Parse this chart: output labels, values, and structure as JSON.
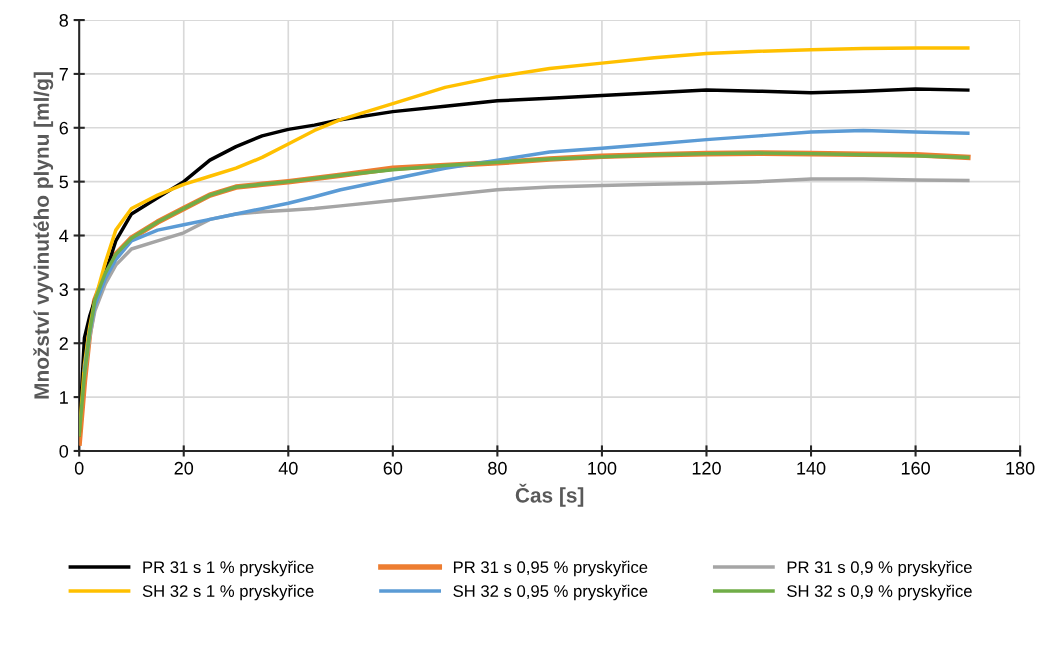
{
  "chart_data": {
    "type": "line",
    "xlabel": "Čas [s]",
    "ylabel": "Množství vyvinutého plynu [ml/g]",
    "x": [
      0,
      1,
      2,
      3,
      5,
      7,
      10,
      15,
      20,
      25,
      30,
      35,
      40,
      45,
      50,
      60,
      70,
      80,
      90,
      100,
      110,
      120,
      130,
      140,
      150,
      160,
      170
    ],
    "xlim": [
      0,
      180
    ],
    "xticks": [
      0,
      20,
      40,
      60,
      80,
      100,
      120,
      140,
      160,
      180
    ],
    "ylim": [
      0,
      8
    ],
    "yticks": [
      0,
      1,
      2,
      3,
      4,
      5,
      6,
      7,
      8
    ],
    "grid": true,
    "legend": "bottom",
    "marker": "none",
    "line_style": "solid",
    "series": [
      {
        "name": "PR 31 s 1 % pryskyřice",
        "color": "#000000",
        "values": [
          0.3,
          2.1,
          2.5,
          2.8,
          3.3,
          3.9,
          4.4,
          4.7,
          5.0,
          5.4,
          5.65,
          5.85,
          5.97,
          6.05,
          6.15,
          6.3,
          6.4,
          6.5,
          6.55,
          6.6,
          6.65,
          6.7,
          6.68,
          6.65,
          6.68,
          6.72,
          6.7
        ]
      },
      {
        "name": "PR 31 s 0,95 % pryskyřice",
        "color": "#ed7d31",
        "values": [
          0.15,
          1.3,
          2.2,
          2.8,
          3.3,
          3.65,
          3.95,
          4.25,
          4.5,
          4.75,
          4.9,
          4.95,
          5.0,
          5.06,
          5.12,
          5.25,
          5.3,
          5.35,
          5.42,
          5.47,
          5.5,
          5.52,
          5.53,
          5.52,
          5.51,
          5.5,
          5.45
        ]
      },
      {
        "name": "PR 31 s 0,9 % pryskyřice",
        "color": "#a5a5a5",
        "values": [
          null,
          1.4,
          2.1,
          2.6,
          3.1,
          3.45,
          3.75,
          3.9,
          4.05,
          4.3,
          4.4,
          4.44,
          4.47,
          4.5,
          4.55,
          4.65,
          4.75,
          4.85,
          4.9,
          4.93,
          4.95,
          4.97,
          5.0,
          5.05,
          5.05,
          5.03,
          5.02
        ]
      },
      {
        "name": "SH 32 s 1 % pryskyřice",
        "color": "#ffc000",
        "values": [
          0.3,
          1.6,
          2.3,
          2.8,
          3.5,
          4.1,
          4.5,
          4.75,
          4.95,
          5.1,
          5.25,
          5.45,
          5.7,
          5.95,
          6.15,
          6.45,
          6.75,
          6.95,
          7.1,
          7.2,
          7.3,
          7.38,
          7.42,
          7.45,
          7.47,
          7.48,
          7.48
        ]
      },
      {
        "name": "SH 32 s 0,95 % pryskyřice",
        "color": "#5b9bd5",
        "values": [
          null,
          1.5,
          2.2,
          2.7,
          3.2,
          3.55,
          3.9,
          4.1,
          4.2,
          4.3,
          4.4,
          4.5,
          4.6,
          4.72,
          4.85,
          5.05,
          5.25,
          5.4,
          5.55,
          5.62,
          5.7,
          5.78,
          5.85,
          5.92,
          5.95,
          5.92,
          5.9
        ]
      },
      {
        "name": "SH 32 s 0,9 % pryskyřice",
        "color": "#70ad47",
        "values": [
          0.3,
          1.4,
          2.2,
          2.8,
          3.3,
          3.65,
          3.95,
          4.25,
          4.5,
          4.75,
          4.9,
          4.95,
          5.0,
          5.06,
          5.12,
          5.22,
          5.3,
          5.36,
          5.42,
          5.46,
          5.5,
          5.52,
          5.53,
          5.52,
          5.5,
          5.48,
          5.45
        ]
      }
    ]
  }
}
